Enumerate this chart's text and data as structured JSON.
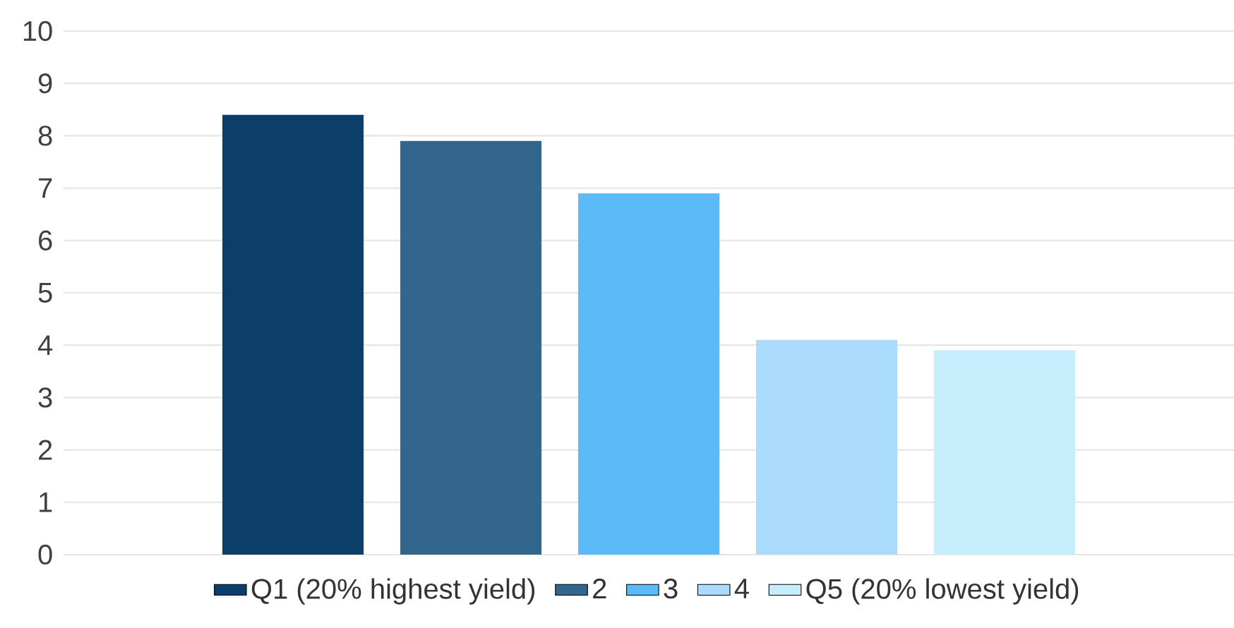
{
  "chart_data": {
    "type": "bar",
    "categories": [
      null
    ],
    "series": [
      {
        "name": "Q1 (20% highest yield)",
        "color": "#0b3e69",
        "values": [
          8.4
        ]
      },
      {
        "name": "2",
        "color": "#33668c",
        "values": [
          7.9
        ]
      },
      {
        "name": "3",
        "color": "#5cbaf7",
        "values": [
          6.9
        ]
      },
      {
        "name": "4",
        "color": "#abdbfc",
        "values": [
          4.1
        ]
      },
      {
        "name": "Q5 (20% lowest yield)",
        "color": "#c6edfc",
        "values": [
          3.9
        ]
      }
    ],
    "ylim": [
      0,
      10
    ],
    "yticks": [
      0,
      1,
      2,
      3,
      4,
      5,
      6,
      7,
      8,
      9,
      10
    ],
    "grid": "y",
    "legend": "bottom"
  }
}
